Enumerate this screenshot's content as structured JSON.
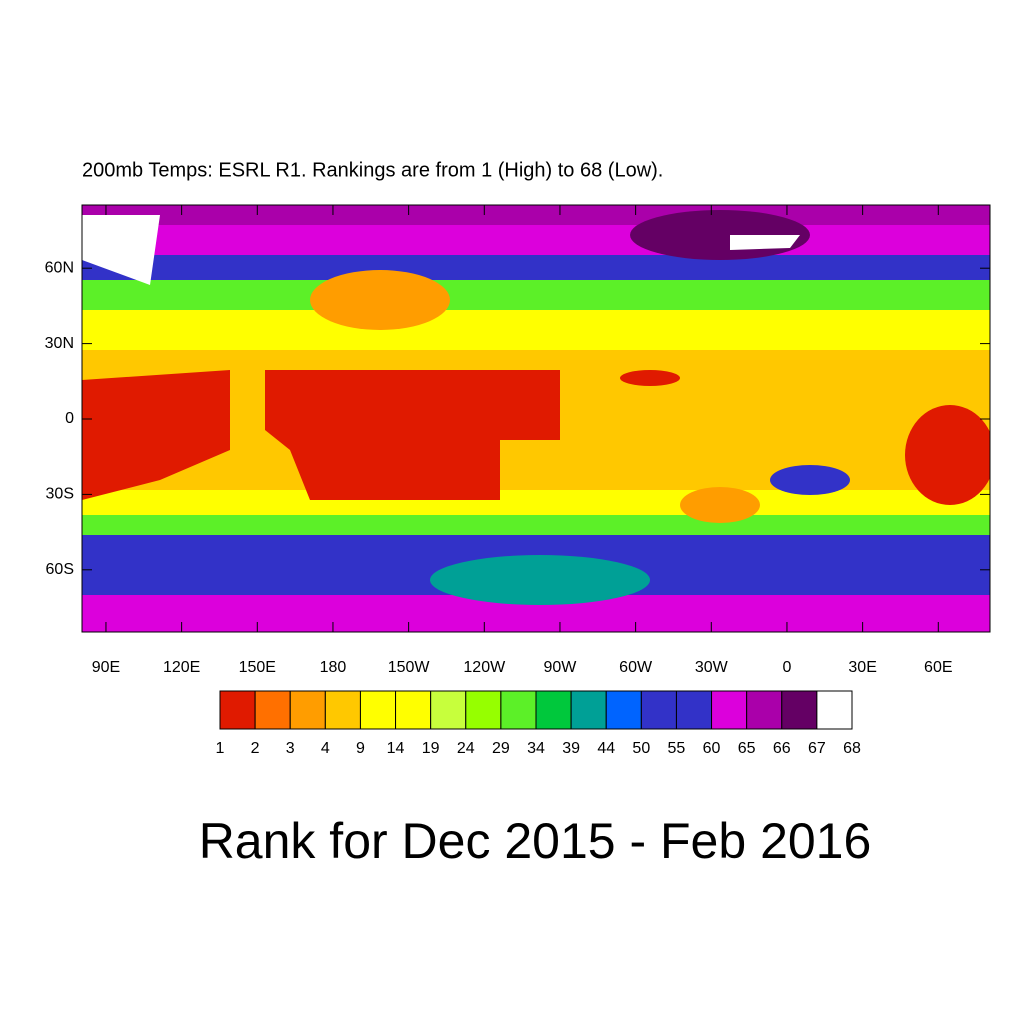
{
  "map": {
    "title": "200mb Temps: ESRL R1. Rankings are from 1 (High) to 68 (Low).",
    "caption": "Rank for Dec 2015 - Feb 2016",
    "xticks": [
      {
        "value": 90,
        "label": "90E"
      },
      {
        "value": 120,
        "label": "120E"
      },
      {
        "value": 150,
        "label": "150E"
      },
      {
        "value": 180,
        "label": "180"
      },
      {
        "value": -150,
        "label": "150W"
      },
      {
        "value": -120,
        "label": "120W"
      },
      {
        "value": -90,
        "label": "90W"
      },
      {
        "value": -60,
        "label": "60W"
      },
      {
        "value": -30,
        "label": "30W"
      },
      {
        "value": 0,
        "label": "0"
      },
      {
        "value": 30,
        "label": "30E"
      },
      {
        "value": 60,
        "label": "60E"
      }
    ],
    "yticks": [
      {
        "value": 60,
        "label": "60N"
      },
      {
        "value": 30,
        "label": "30N"
      },
      {
        "value": 0,
        "label": "0"
      },
      {
        "value": -30,
        "label": "30S"
      },
      {
        "value": -60,
        "label": "60S"
      }
    ],
    "colorbar": {
      "levels": [
        1,
        2,
        3,
        4,
        9,
        14,
        19,
        24,
        29,
        34,
        39,
        44,
        50,
        55,
        60,
        65,
        66,
        67,
        68
      ],
      "colors": [
        "#e01a00",
        "#ff7000",
        "#ff9d00",
        "#ffc800",
        "#ffff00",
        "#ffff00",
        "#c7ff3c",
        "#96ff00",
        "#5cf028",
        "#00c83c",
        "#00a096",
        "#0064ff",
        "#3232c8",
        "#3232c8",
        "#dc00dc",
        "#aa00aa",
        "#640064",
        "#ffffff"
      ]
    }
  }
}
